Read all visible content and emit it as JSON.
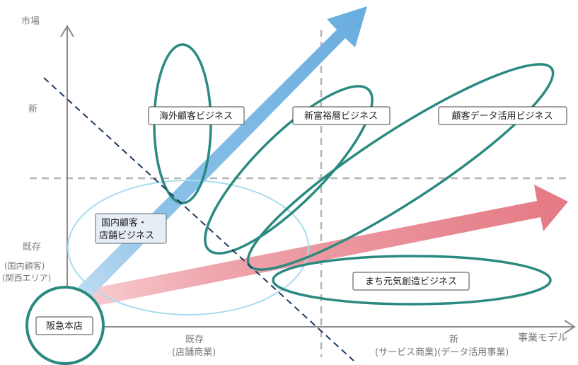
{
  "axes": {
    "y_title": "市場",
    "y_new": "新",
    "y_existing": "既存",
    "y_existing_sub1": "(国内顧客)",
    "y_existing_sub2": "(関西エリア)",
    "x_title": "事業モデル",
    "x_existing": "既存",
    "x_existing_sub": "(店舗商業)",
    "x_new": "新",
    "x_new_sub": "(サービス商業)(データ活用事業)"
  },
  "origin": {
    "label": "阪急本店"
  },
  "businesses": [
    {
      "key": "overseas",
      "label": "海外顧客ビジネス"
    },
    {
      "key": "wealthy",
      "label": "新富裕層ビジネス"
    },
    {
      "key": "data",
      "label": "顧客データ活用ビジネス"
    },
    {
      "key": "machi",
      "label": "まち元気創造ビジネス"
    }
  ],
  "domestic": {
    "line1": "国内顧客・",
    "line2": "店舗ビジネス"
  },
  "colors": {
    "blue_arrow": "#6aaedf",
    "blue_arrow_light": "#cfe3f3",
    "red_arrow": "#e47a84",
    "red_arrow_light": "#f5c4c9",
    "teal_ellipse": "#2b8a80",
    "light_blue_ellipse": "#a8dcef",
    "axis": "#8a8a8a",
    "dashed_quadrant": "#b4b4b4",
    "dashed_diagonal": "#1f3a5f"
  }
}
